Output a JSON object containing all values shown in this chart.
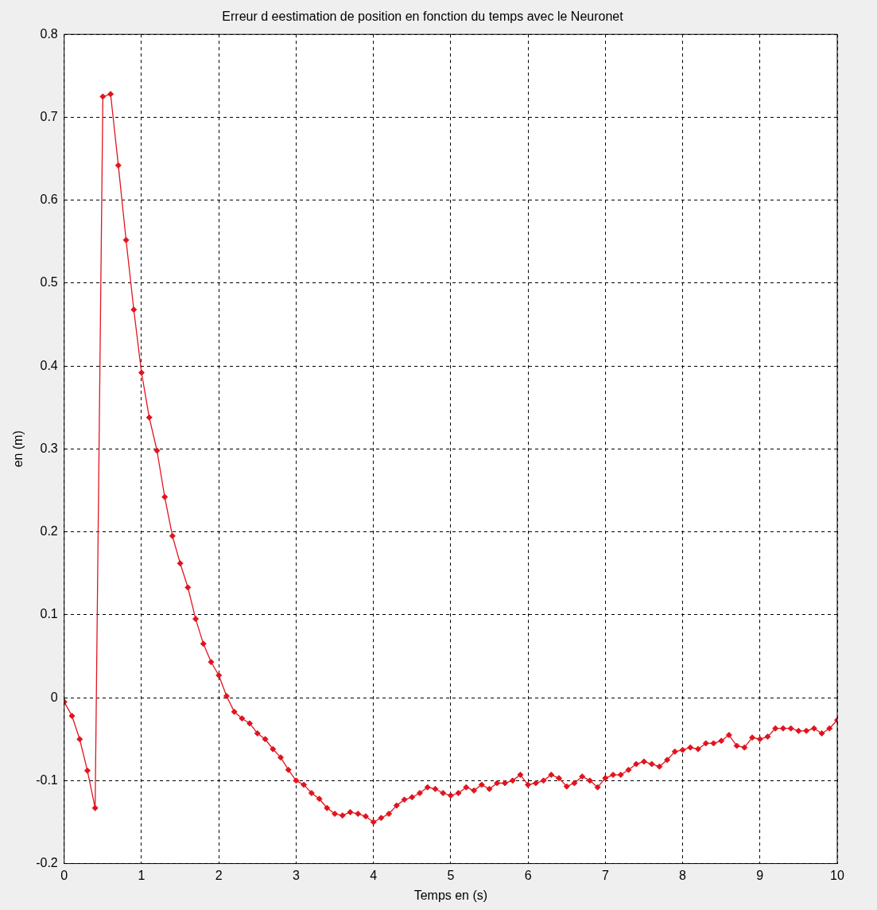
{
  "chart_data": {
    "type": "line",
    "title": "Erreur d eestimation de position en fonction du temps avec le Neuronet",
    "xlabel": "Temps en (s)",
    "ylabel": "en (m)",
    "x": [
      0,
      0.1,
      0.2,
      0.3,
      0.4,
      0.5,
      0.6,
      0.7,
      0.8,
      0.9,
      1,
      1.1,
      1.2,
      1.3,
      1.4,
      1.5,
      1.6,
      1.7,
      1.8,
      1.9,
      2,
      2.1,
      2.2,
      2.3,
      2.4,
      2.5,
      2.6,
      2.7,
      2.8,
      2.9,
      3,
      3.1,
      3.2,
      3.3,
      3.4,
      3.5,
      3.6,
      3.7,
      3.8,
      3.9,
      4,
      4.1,
      4.2,
      4.3,
      4.4,
      4.5,
      4.6,
      4.7,
      4.8,
      4.9,
      5,
      5.1,
      5.2,
      5.3,
      5.4,
      5.5,
      5.6,
      5.7,
      5.8,
      5.9,
      6,
      6.1,
      6.2,
      6.3,
      6.4,
      6.5,
      6.6,
      6.7,
      6.8,
      6.9,
      7,
      7.1,
      7.2,
      7.3,
      7.4,
      7.5,
      7.6,
      7.7,
      7.8,
      7.9,
      8,
      8.1,
      8.2,
      8.3,
      8.4,
      8.5,
      8.6,
      8.7,
      8.8,
      8.9,
      9,
      9.1,
      9.2,
      9.3,
      9.4,
      9.5,
      9.6,
      9.7,
      9.8,
      9.9,
      10
    ],
    "series": [
      {
        "color": "#e0141e",
        "values": [
          -0.005,
          -0.022,
          -0.05,
          -0.088,
          -0.133,
          0.725,
          0.728,
          0.642,
          0.552,
          0.468,
          0.392,
          0.338,
          0.298,
          0.242,
          0.195,
          0.162,
          0.133,
          0.095,
          0.065,
          0.043,
          0.027,
          0.002,
          -0.017,
          -0.025,
          -0.031,
          -0.043,
          -0.05,
          -0.062,
          -0.072,
          -0.087,
          -0.1,
          -0.105,
          -0.115,
          -0.122,
          -0.133,
          -0.14,
          -0.142,
          -0.138,
          -0.14,
          -0.143,
          -0.15,
          -0.145,
          -0.14,
          -0.13,
          -0.123,
          -0.12,
          -0.115,
          -0.108,
          -0.11,
          -0.115,
          -0.118,
          -0.115,
          -0.108,
          -0.112,
          -0.105,
          -0.11,
          -0.103,
          -0.103,
          -0.1,
          -0.093,
          -0.105,
          -0.103,
          -0.1,
          -0.093,
          -0.097,
          -0.107,
          -0.103,
          -0.095,
          -0.1,
          -0.108,
          -0.097,
          -0.093,
          -0.093,
          -0.087,
          -0.08,
          -0.077,
          -0.08,
          -0.083,
          -0.075,
          -0.065,
          -0.063,
          -0.06,
          -0.062,
          -0.055,
          -0.055,
          -0.052,
          -0.045,
          -0.058,
          -0.06,
          -0.048,
          -0.05,
          -0.047,
          -0.037,
          -0.037,
          -0.037,
          -0.04,
          -0.04,
          -0.037,
          -0.043,
          -0.037,
          -0.027
        ]
      }
    ],
    "xlim": [
      0,
      10
    ],
    "xticks": [
      0,
      1,
      2,
      3,
      4,
      5,
      6,
      7,
      8,
      9,
      10
    ],
    "ylim": [
      -0.2,
      0.8
    ],
    "yticks": [
      -0.2,
      -0.1,
      0,
      0.1,
      0.2,
      0.3,
      0.4,
      0.5,
      0.6,
      0.7,
      0.8
    ],
    "grid": true,
    "legend": false,
    "marker": "diamond",
    "line_style": "solid"
  }
}
